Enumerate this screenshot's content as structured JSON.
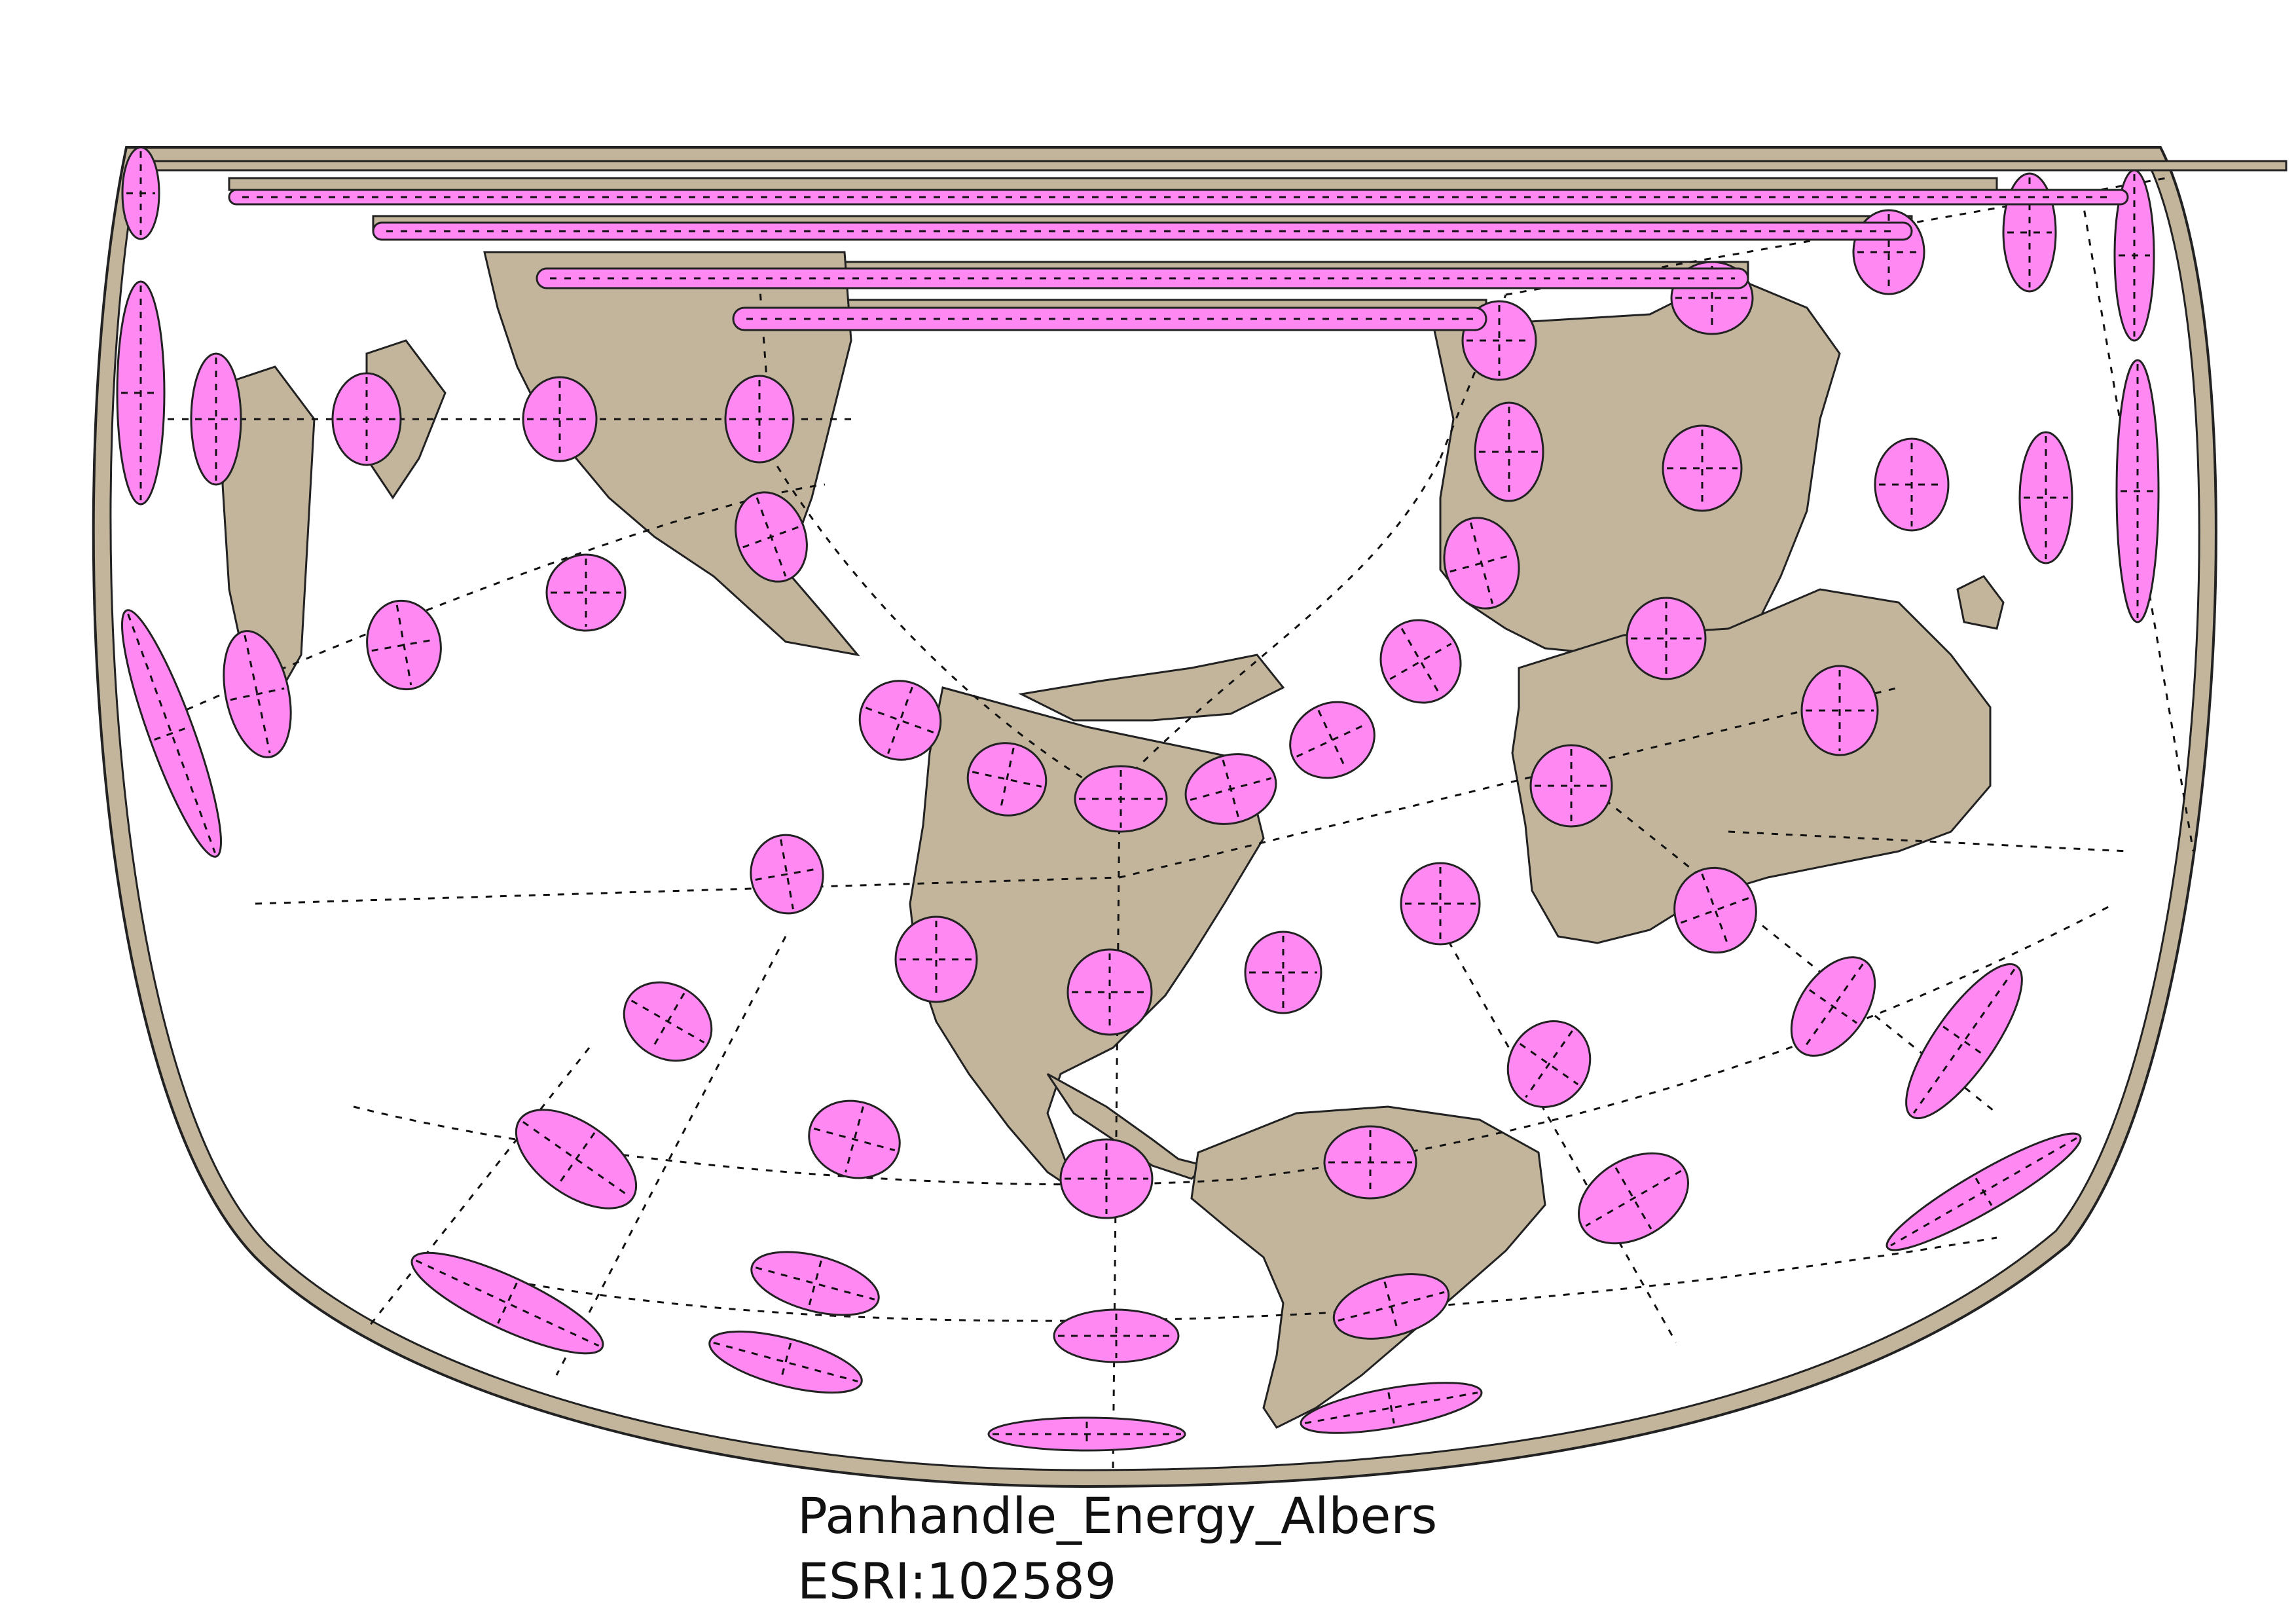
{
  "map": {
    "projection_name": "Panhandle_Energy_Albers",
    "projection_code": "ESRI:102589",
    "projection_family": "Albers equal-area conic",
    "graticule": "dashed",
    "indicatrix": "Tissot ellipses",
    "colors": {
      "land": "#c2b59b",
      "ellipse": "#ff88f2",
      "outline": "#222222",
      "graticule": "#111111",
      "ocean": "#ffffff"
    }
  }
}
